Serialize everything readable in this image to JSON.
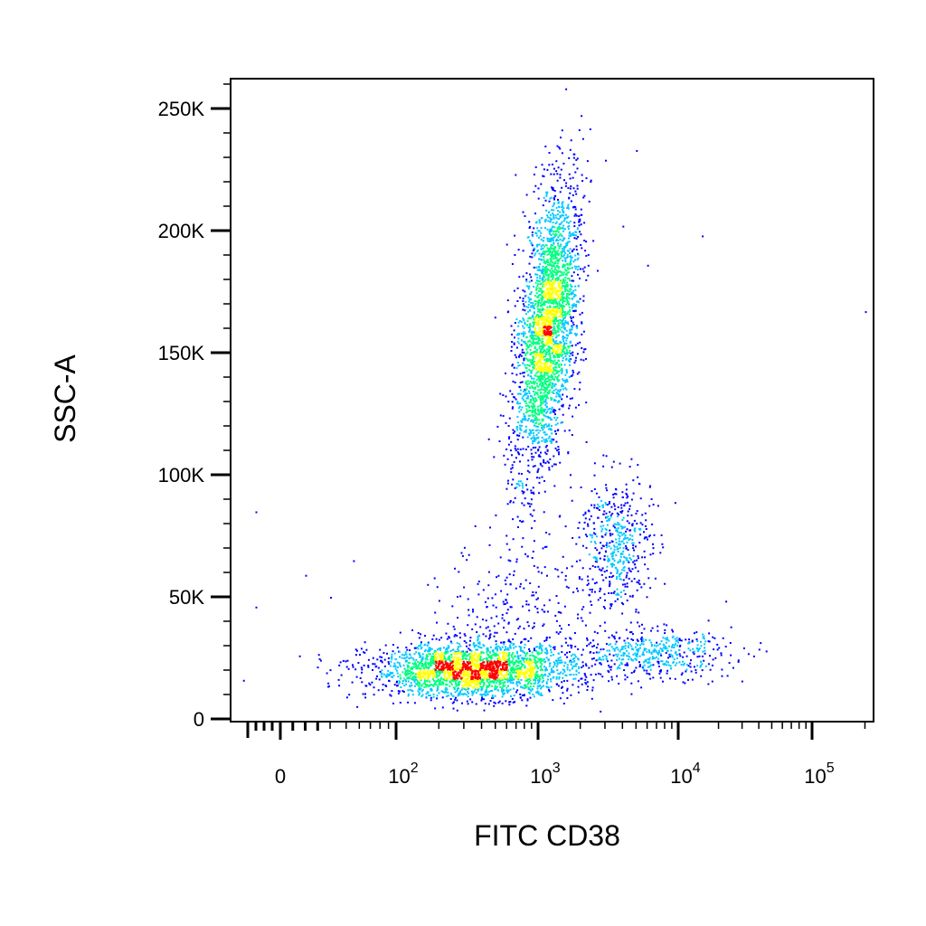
{
  "chart_data": {
    "type": "scatter",
    "title": "",
    "xlabel": "FITC CD38",
    "ylabel": "SSC-A",
    "x_scale": "biexponential",
    "y_scale": "linear",
    "xlim": [
      -100,
      200000
    ],
    "ylim": [
      0,
      262144
    ],
    "grid": false,
    "legend": "none",
    "colormap": [
      "#0000ff",
      "#00c8ff",
      "#00ff80",
      "#ffff00",
      "#ff0000"
    ],
    "x_ticks": [
      {
        "value": 0,
        "base": "0",
        "exp": ""
      },
      {
        "value": 100,
        "base": "10",
        "exp": "2"
      },
      {
        "value": 1000,
        "base": "10",
        "exp": "3"
      },
      {
        "value": 10000,
        "base": "10",
        "exp": "4"
      },
      {
        "value": 100000,
        "base": "10",
        "exp": "5"
      }
    ],
    "y_ticks": [
      {
        "value": 0,
        "label": "0"
      },
      {
        "value": 50000,
        "label": "50K"
      },
      {
        "value": 100000,
        "label": "100K"
      },
      {
        "value": 150000,
        "label": "150K"
      },
      {
        "value": 200000,
        "label": "200K"
      },
      {
        "value": 250000,
        "label": "250K"
      }
    ],
    "populations": [
      {
        "x_center": 1150,
        "y_center": 160000,
        "x_log_sd": 0.1,
        "y_sd": 30000,
        "slope": 2.3,
        "count": 2800
      },
      {
        "x_center": 350,
        "y_center": 20000,
        "x_log_sd": 0.35,
        "y_sd": 5500,
        "slope": -0.0,
        "count": 2400
      },
      {
        "x_center": 3500,
        "y_center": 72000,
        "x_log_sd": 0.13,
        "y_sd": 14000,
        "slope": 0,
        "count": 500
      },
      {
        "x_center": 6000,
        "y_center": 27000,
        "x_log_sd": 0.3,
        "y_sd": 5000,
        "slope": 0,
        "count": 500
      },
      {
        "x_center": 700,
        "y_center": 45000,
        "x_log_sd": 0.25,
        "y_sd": 15000,
        "slope": 0,
        "count": 250
      }
    ],
    "outliers": [
      {
        "x": -20,
        "y": 85000
      },
      {
        "x": -20,
        "y": 46000
      },
      {
        "x": 20,
        "y": 59000
      },
      {
        "x": 55,
        "y": 65000
      },
      {
        "x": 5000,
        "y": 233000
      },
      {
        "x": 15000,
        "y": 198000
      },
      {
        "x": 6000,
        "y": 186000
      },
      {
        "x": 200000,
        "y": 167000
      },
      {
        "x": 4000,
        "y": 202000
      },
      {
        "x": 3000,
        "y": 229000
      },
      {
        "x": 45000,
        "y": 28000
      },
      {
        "x": 15,
        "y": 26000
      },
      {
        "x": -30,
        "y": 16000
      },
      {
        "x": 40,
        "y": 50000
      }
    ]
  }
}
